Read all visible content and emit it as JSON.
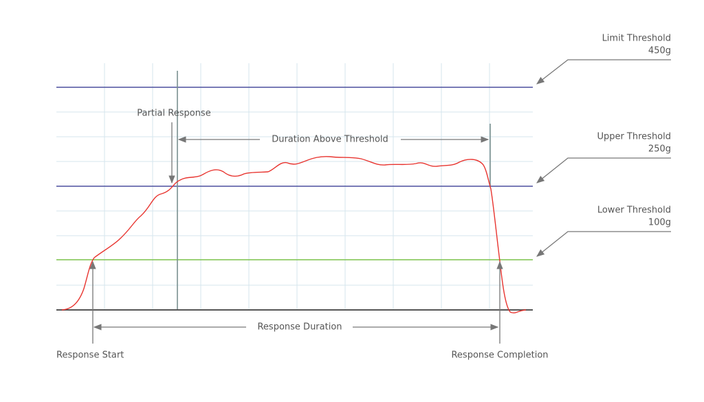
{
  "thresholds": [
    {
      "label": "Limit Threshold",
      "value": "450g"
    },
    {
      "label": "Upper Threshold",
      "value": "250g"
    },
    {
      "label": "Lower Threshold",
      "value": "100g"
    }
  ],
  "annotations": {
    "partial_response": "Partial Response",
    "duration_above_threshold": "Duration Above Threshold",
    "response_duration": "Response Duration",
    "response_start": "Response Start",
    "response_completion": "Response Completion"
  }
}
